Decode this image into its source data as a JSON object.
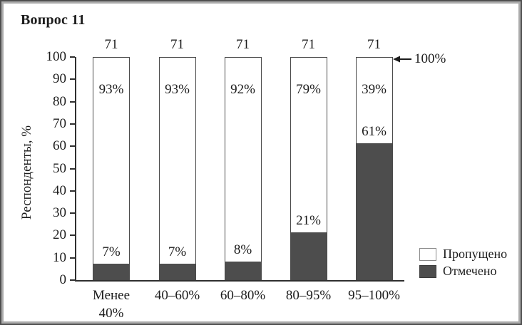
{
  "title": "Вопрос 11",
  "annotation": {
    "label": "100%"
  },
  "colors": {
    "marked": "#4d4d4d",
    "skipped": "#ffffff",
    "axis": "#2f2f2f",
    "text": "#1c1c1c",
    "frame_outer": "#4f4f4f",
    "frame_inner": "#acacac"
  },
  "chart_data": {
    "type": "bar",
    "stacked": true,
    "title": "Вопрос 11",
    "ylabel": "Респонденты, %",
    "xlabel": "",
    "ylim": [
      0,
      100
    ],
    "yticks": [
      0,
      10,
      20,
      30,
      40,
      50,
      60,
      70,
      80,
      90,
      100
    ],
    "grid": false,
    "legend_position": "right-bottom",
    "categories": [
      [
        "Менее",
        "40%"
      ],
      [
        "40–60%"
      ],
      [
        "60–80%"
      ],
      [
        "80–95%"
      ],
      [
        "95–100%"
      ]
    ],
    "series": [
      {
        "name": "Отмечено",
        "color": "#4d4d4d",
        "values": [
          7,
          7,
          8,
          21,
          61
        ]
      },
      {
        "name": "Пропущено",
        "color": "#ffffff",
        "values": [
          93,
          93,
          92,
          79,
          39
        ]
      }
    ],
    "bar_totals": [
      "71",
      "71",
      "71",
      "71",
      "71"
    ],
    "annotation": "← 100%"
  }
}
